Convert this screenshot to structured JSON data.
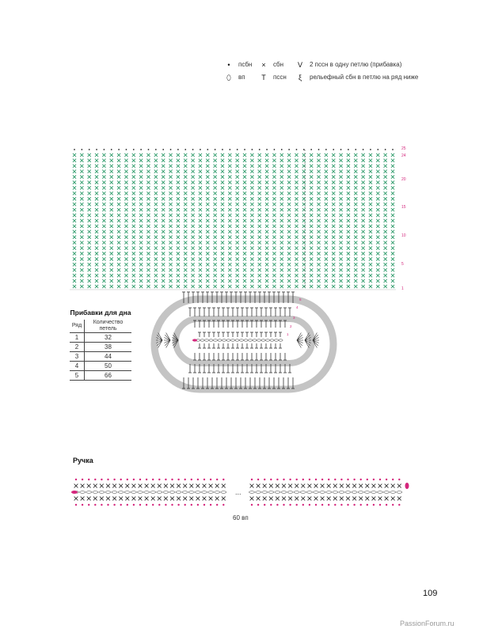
{
  "legend": {
    "items": [
      {
        "icon": "bullet-dot-icon",
        "glyph": "•",
        "label": "псбн"
      },
      {
        "icon": "cross-icon",
        "glyph": "×",
        "label": "сбн"
      },
      {
        "icon": "v-increase-icon",
        "glyph": "V",
        "label": "2 пссн в одну петлю (прибавка)"
      },
      {
        "icon": "oval-icon",
        "glyph": "⬯",
        "label": "вп"
      },
      {
        "icon": "t-stitch-icon",
        "glyph": "T",
        "label": "пссн"
      },
      {
        "icon": "relief-icon",
        "glyph": "ξ",
        "label": "рельефный сбн в петлю на ряд ниже"
      }
    ]
  },
  "body_chart": {
    "row_labels": [
      "25",
      "24",
      "20",
      "15",
      "10",
      "5",
      "1"
    ],
    "colors": {
      "stitch": "#2e9b6a",
      "marker": "#d4267c",
      "dot": "#222222",
      "ring": "#c4c4c4"
    }
  },
  "base_chart": {
    "row_labels": [
      "5",
      "4",
      "3",
      "2",
      "1"
    ]
  },
  "increases_table": {
    "title": "Прибавки для дна",
    "col_row": "Ряд",
    "col_count": "Количество петель",
    "rows": [
      {
        "row": "1",
        "count": "32"
      },
      {
        "row": "2",
        "count": "38"
      },
      {
        "row": "3",
        "count": "44"
      },
      {
        "row": "4",
        "count": "50"
      },
      {
        "row": "5",
        "count": "66"
      }
    ]
  },
  "handle": {
    "title": "Ручка",
    "ellipsis": "...",
    "caption": "60 вп"
  },
  "page_number": "109",
  "watermark": "PassionForum.ru"
}
